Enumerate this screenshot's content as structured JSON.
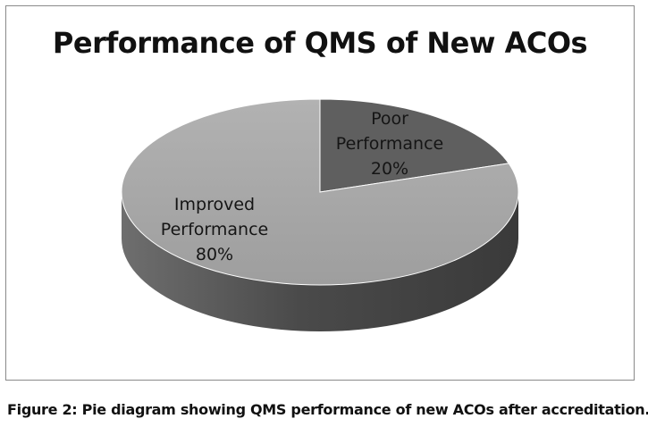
{
  "chart_data": {
    "type": "pie",
    "title": "Performance of QMS of New ACOs",
    "slices": [
      {
        "label_lines": [
          "Poor",
          "Performance"
        ],
        "value": 20,
        "value_label": "20%",
        "color": "#5f5f5f",
        "side_color": "#3f3f3f"
      },
      {
        "label_lines": [
          "Improved",
          "Performance"
        ],
        "value": 80,
        "value_label": "80%",
        "color": "#a6a6a6",
        "side_color": "#6a6a6a"
      }
    ],
    "legend": "none",
    "style": "3d"
  },
  "caption": "Figure 2: Pie diagram showing QMS performance of new ACOs after accreditation."
}
